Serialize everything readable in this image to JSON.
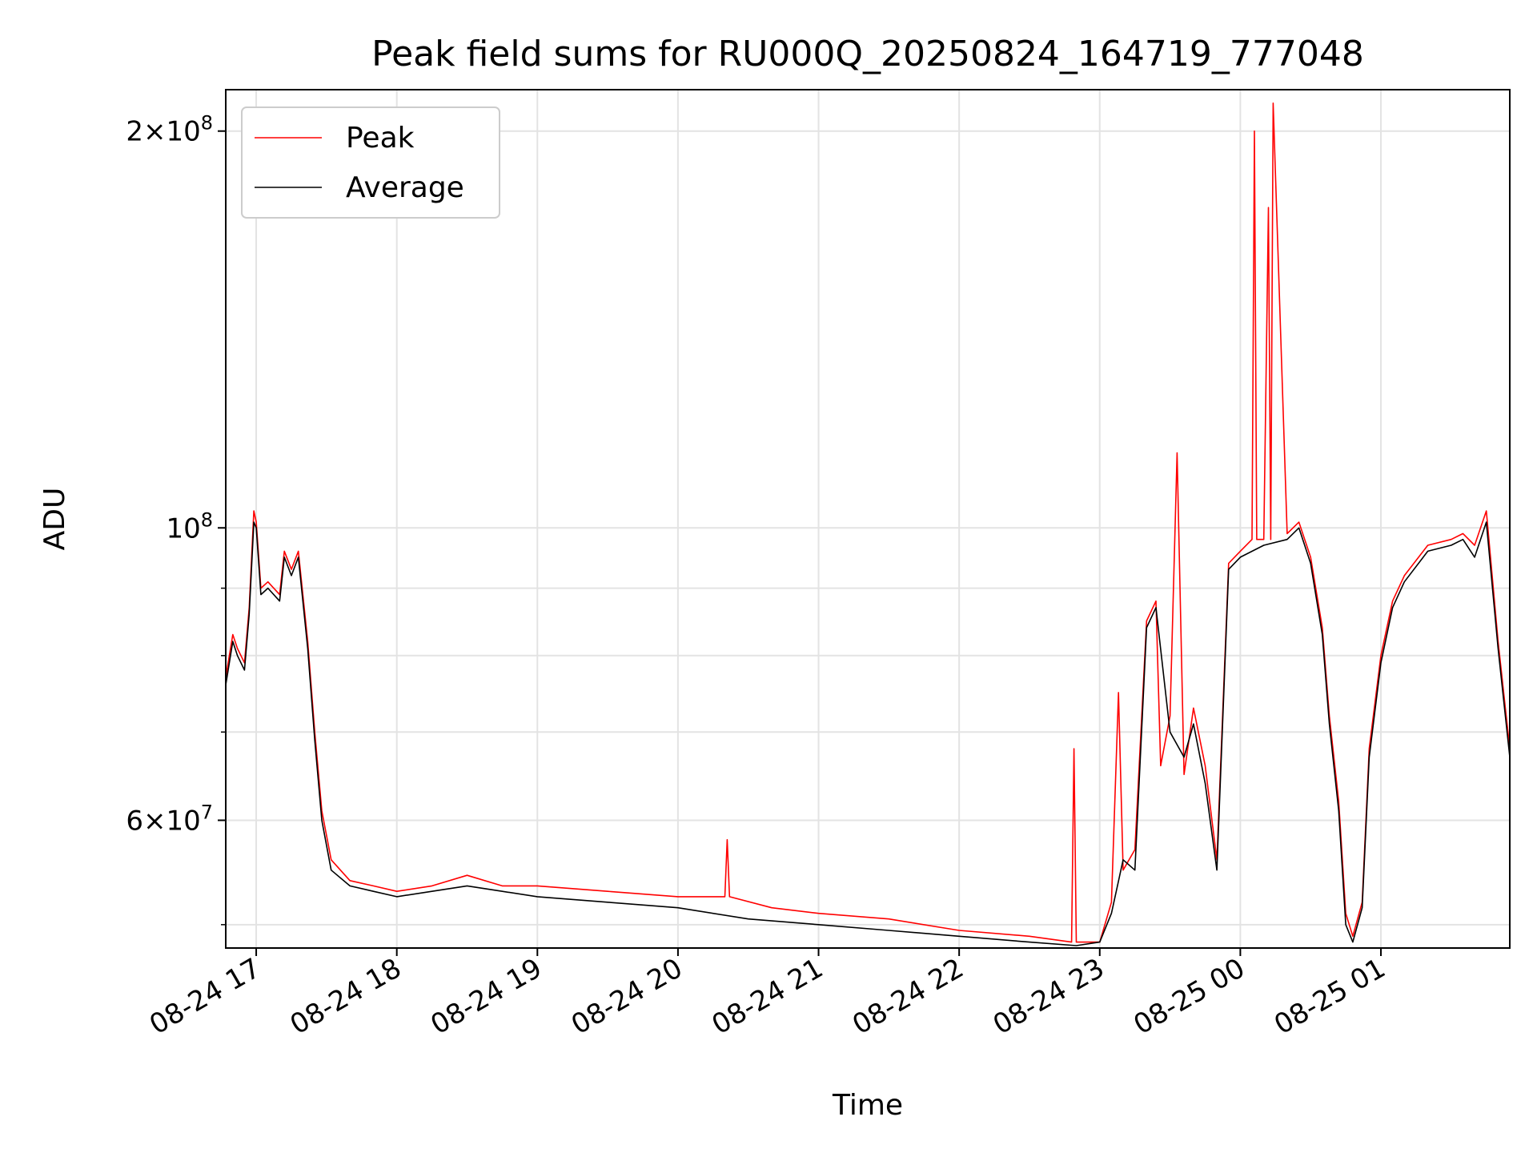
{
  "chart_data": {
    "type": "line",
    "title": "Peak field sums for RU000Q_20250824_164719_777048",
    "xlabel": "Time",
    "ylabel": "ADU",
    "y_scale": "log",
    "ylim": [
      48000000,
      215000000
    ],
    "x_range": [
      "2025-08-24 16:47",
      "2025-08-25 01:55"
    ],
    "grid": true,
    "legend_position": "upper-left",
    "x_ticks": [
      {
        "x": "2025-08-24 17:00",
        "label": "08-24 17"
      },
      {
        "x": "2025-08-24 18:00",
        "label": "08-24 18"
      },
      {
        "x": "2025-08-24 19:00",
        "label": "08-24 19"
      },
      {
        "x": "2025-08-24 20:00",
        "label": "08-24 20"
      },
      {
        "x": "2025-08-24 21:00",
        "label": "08-24 21"
      },
      {
        "x": "2025-08-24 22:00",
        "label": "08-24 22"
      },
      {
        "x": "2025-08-24 23:00",
        "label": "08-24 23"
      },
      {
        "x": "2025-08-25 00:00",
        "label": "08-25 00"
      },
      {
        "x": "2025-08-25 01:00",
        "label": "08-25 01"
      }
    ],
    "y_ticks": [
      {
        "value": 200000000,
        "base": "2×10",
        "exp": "8"
      },
      {
        "value": 100000000,
        "base": "10",
        "exp": "8"
      },
      {
        "value": 60000000,
        "base": "6×10",
        "exp": "7"
      }
    ],
    "y_minor_ticks": [
      50000000,
      70000000,
      80000000,
      90000000
    ],
    "series": [
      {
        "name": "Peak",
        "color": "#ff0000",
        "x": [
          "2025-08-24 16:47",
          "2025-08-24 16:50",
          "2025-08-24 16:52",
          "2025-08-24 16:55",
          "2025-08-24 16:57",
          "2025-08-24 16:59",
          "2025-08-24 17:00",
          "2025-08-24 17:02",
          "2025-08-24 17:05",
          "2025-08-24 17:10",
          "2025-08-24 17:12",
          "2025-08-24 17:15",
          "2025-08-24 17:18",
          "2025-08-24 17:22",
          "2025-08-24 17:25",
          "2025-08-24 17:28",
          "2025-08-24 17:32",
          "2025-08-24 17:40",
          "2025-08-24 17:50",
          "2025-08-24 18:00",
          "2025-08-24 18:15",
          "2025-08-24 18:30",
          "2025-08-24 18:45",
          "2025-08-24 19:00",
          "2025-08-24 19:30",
          "2025-08-24 20:00",
          "2025-08-24 20:20",
          "2025-08-24 20:21",
          "2025-08-24 20:22",
          "2025-08-24 20:40",
          "2025-08-24 21:00",
          "2025-08-24 21:30",
          "2025-08-24 22:00",
          "2025-08-24 22:30",
          "2025-08-24 22:48",
          "2025-08-24 22:49",
          "2025-08-24 22:50",
          "2025-08-24 23:00",
          "2025-08-24 23:05",
          "2025-08-24 23:08",
          "2025-08-24 23:10",
          "2025-08-24 23:15",
          "2025-08-24 23:20",
          "2025-08-24 23:24",
          "2025-08-24 23:26",
          "2025-08-24 23:30",
          "2025-08-24 23:33",
          "2025-08-24 23:36",
          "2025-08-24 23:40",
          "2025-08-24 23:45",
          "2025-08-24 23:50",
          "2025-08-24 23:55",
          "2025-08-25 00:00",
          "2025-08-25 00:05",
          "2025-08-25 00:06",
          "2025-08-25 00:07",
          "2025-08-25 00:10",
          "2025-08-25 00:12",
          "2025-08-25 00:13",
          "2025-08-25 00:14",
          "2025-08-25 00:20",
          "2025-08-25 00:25",
          "2025-08-25 00:30",
          "2025-08-25 00:35",
          "2025-08-25 00:38",
          "2025-08-25 00:42",
          "2025-08-25 00:45",
          "2025-08-25 00:48",
          "2025-08-25 00:52",
          "2025-08-25 00:55",
          "2025-08-25 01:00",
          "2025-08-25 01:05",
          "2025-08-25 01:10",
          "2025-08-25 01:20",
          "2025-08-25 01:30",
          "2025-08-25 01:35",
          "2025-08-25 01:40",
          "2025-08-25 01:45",
          "2025-08-25 01:50",
          "2025-08-25 01:55"
        ],
        "values": [
          77000000,
          83000000,
          81000000,
          79000000,
          87000000,
          103000000,
          101000000,
          90000000,
          91000000,
          89000000,
          96000000,
          93000000,
          96000000,
          82000000,
          70000000,
          61000000,
          56000000,
          54000000,
          53500000,
          53000000,
          53500000,
          54500000,
          53500000,
          53500000,
          53000000,
          52500000,
          52500000,
          58000000,
          52500000,
          51500000,
          51000000,
          50500000,
          49500000,
          49000000,
          48500000,
          68000000,
          48500000,
          48500000,
          52000000,
          75000000,
          55000000,
          57000000,
          85000000,
          88000000,
          66000000,
          72000000,
          114000000,
          65000000,
          73000000,
          66000000,
          56000000,
          94000000,
          96000000,
          98000000,
          200000000,
          98000000,
          98000000,
          175000000,
          98000000,
          210000000,
          99000000,
          101000000,
          95000000,
          84000000,
          72000000,
          62000000,
          51000000,
          49000000,
          52000000,
          68000000,
          80000000,
          88000000,
          92000000,
          97000000,
          98000000,
          99000000,
          97000000,
          103000000,
          82000000,
          68000000
        ]
      },
      {
        "name": "Average",
        "color": "#000000",
        "x": [
          "2025-08-24 16:47",
          "2025-08-24 16:50",
          "2025-08-24 16:52",
          "2025-08-24 16:55",
          "2025-08-24 16:57",
          "2025-08-24 16:59",
          "2025-08-24 17:00",
          "2025-08-24 17:02",
          "2025-08-24 17:05",
          "2025-08-24 17:10",
          "2025-08-24 17:12",
          "2025-08-24 17:15",
          "2025-08-24 17:18",
          "2025-08-24 17:22",
          "2025-08-24 17:25",
          "2025-08-24 17:28",
          "2025-08-24 17:32",
          "2025-08-24 17:40",
          "2025-08-24 17:50",
          "2025-08-24 18:00",
          "2025-08-24 18:15",
          "2025-08-24 18:30",
          "2025-08-24 18:45",
          "2025-08-24 19:00",
          "2025-08-24 19:30",
          "2025-08-24 20:00",
          "2025-08-24 20:30",
          "2025-08-24 21:00",
          "2025-08-24 21:30",
          "2025-08-24 22:00",
          "2025-08-24 22:30",
          "2025-08-24 22:50",
          "2025-08-24 23:00",
          "2025-08-24 23:05",
          "2025-08-24 23:10",
          "2025-08-24 23:15",
          "2025-08-24 23:20",
          "2025-08-24 23:24",
          "2025-08-24 23:30",
          "2025-08-24 23:36",
          "2025-08-24 23:40",
          "2025-08-24 23:45",
          "2025-08-24 23:50",
          "2025-08-24 23:55",
          "2025-08-25 00:00",
          "2025-08-25 00:10",
          "2025-08-25 00:20",
          "2025-08-25 00:25",
          "2025-08-25 00:30",
          "2025-08-25 00:35",
          "2025-08-25 00:38",
          "2025-08-25 00:42",
          "2025-08-25 00:45",
          "2025-08-25 00:48",
          "2025-08-25 00:52",
          "2025-08-25 00:55",
          "2025-08-25 01:00",
          "2025-08-25 01:05",
          "2025-08-25 01:10",
          "2025-08-25 01:20",
          "2025-08-25 01:30",
          "2025-08-25 01:35",
          "2025-08-25 01:40",
          "2025-08-25 01:45",
          "2025-08-25 01:50",
          "2025-08-25 01:55"
        ],
        "values": [
          76000000,
          82000000,
          80000000,
          78000000,
          86000000,
          101000000,
          100000000,
          89000000,
          90000000,
          88000000,
          95000000,
          92000000,
          95000000,
          81000000,
          69000000,
          60000000,
          55000000,
          53500000,
          53000000,
          52500000,
          53000000,
          53500000,
          53000000,
          52500000,
          52000000,
          51500000,
          50500000,
          50000000,
          49500000,
          49000000,
          48500000,
          48200000,
          48500000,
          51000000,
          56000000,
          55000000,
          84000000,
          87000000,
          70000000,
          67000000,
          71000000,
          64000000,
          55000000,
          93000000,
          95000000,
          97000000,
          98000000,
          100000000,
          94000000,
          83000000,
          71000000,
          61000000,
          50000000,
          48500000,
          51500000,
          67000000,
          79000000,
          87000000,
          91000000,
          96000000,
          97000000,
          98000000,
          95000000,
          101000000,
          81000000,
          67000000
        ]
      }
    ]
  }
}
